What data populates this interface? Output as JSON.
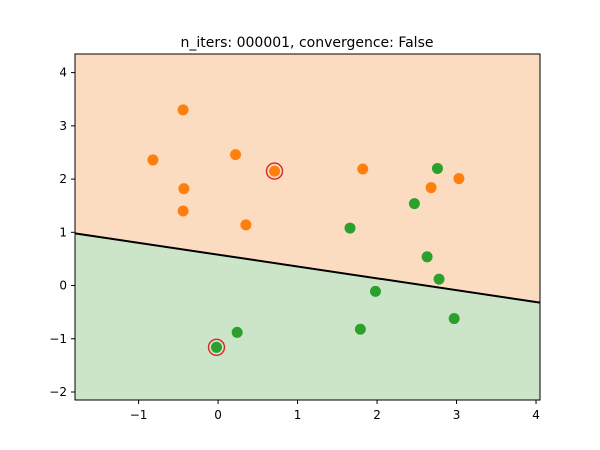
{
  "chart_data": {
    "type": "scatter",
    "title": "n_iters: 000001, convergence: False",
    "xlabel": "",
    "ylabel": "",
    "xlim": [
      -1.8,
      4.05
    ],
    "ylim": [
      -2.15,
      4.35
    ],
    "xticks": [
      -1,
      0,
      1,
      2,
      3,
      4
    ],
    "xtick_labels": [
      "−1",
      "0",
      "1",
      "2",
      "3",
      "4"
    ],
    "yticks": [
      -2,
      -1,
      0,
      1,
      2,
      3,
      4
    ],
    "ytick_labels": [
      "−2",
      "−1",
      "0",
      "1",
      "2",
      "3",
      "4"
    ],
    "grid": false,
    "decision_line": {
      "x": [
        -1.8,
        4.05
      ],
      "y": [
        0.98,
        -0.32
      ]
    },
    "region_colors": {
      "upper": "#fbdcc0",
      "lower": "#cce5c8"
    },
    "series": [
      {
        "color": "#ff7f0e",
        "x": [
          -0.44,
          -0.82,
          0.22,
          -0.43,
          -0.44,
          0.35,
          0.71,
          1.82,
          2.68,
          3.03
        ],
        "y": [
          3.3,
          2.36,
          2.46,
          1.82,
          1.4,
          1.14,
          2.15,
          2.19,
          1.84,
          2.01
        ]
      },
      {
        "color": "#2ca02c",
        "x": [
          -0.02,
          0.24,
          1.66,
          1.98,
          1.79,
          2.47,
          2.63,
          2.78,
          2.97,
          2.76
        ],
        "y": [
          -1.16,
          -0.88,
          1.08,
          -0.11,
          -0.82,
          1.54,
          0.54,
          0.12,
          -0.62,
          2.2
        ]
      }
    ],
    "highlighted": [
      {
        "x": 0.71,
        "y": 2.15
      },
      {
        "x": -0.02,
        "y": -1.16
      }
    ],
    "highlight_color": "#d62728"
  }
}
